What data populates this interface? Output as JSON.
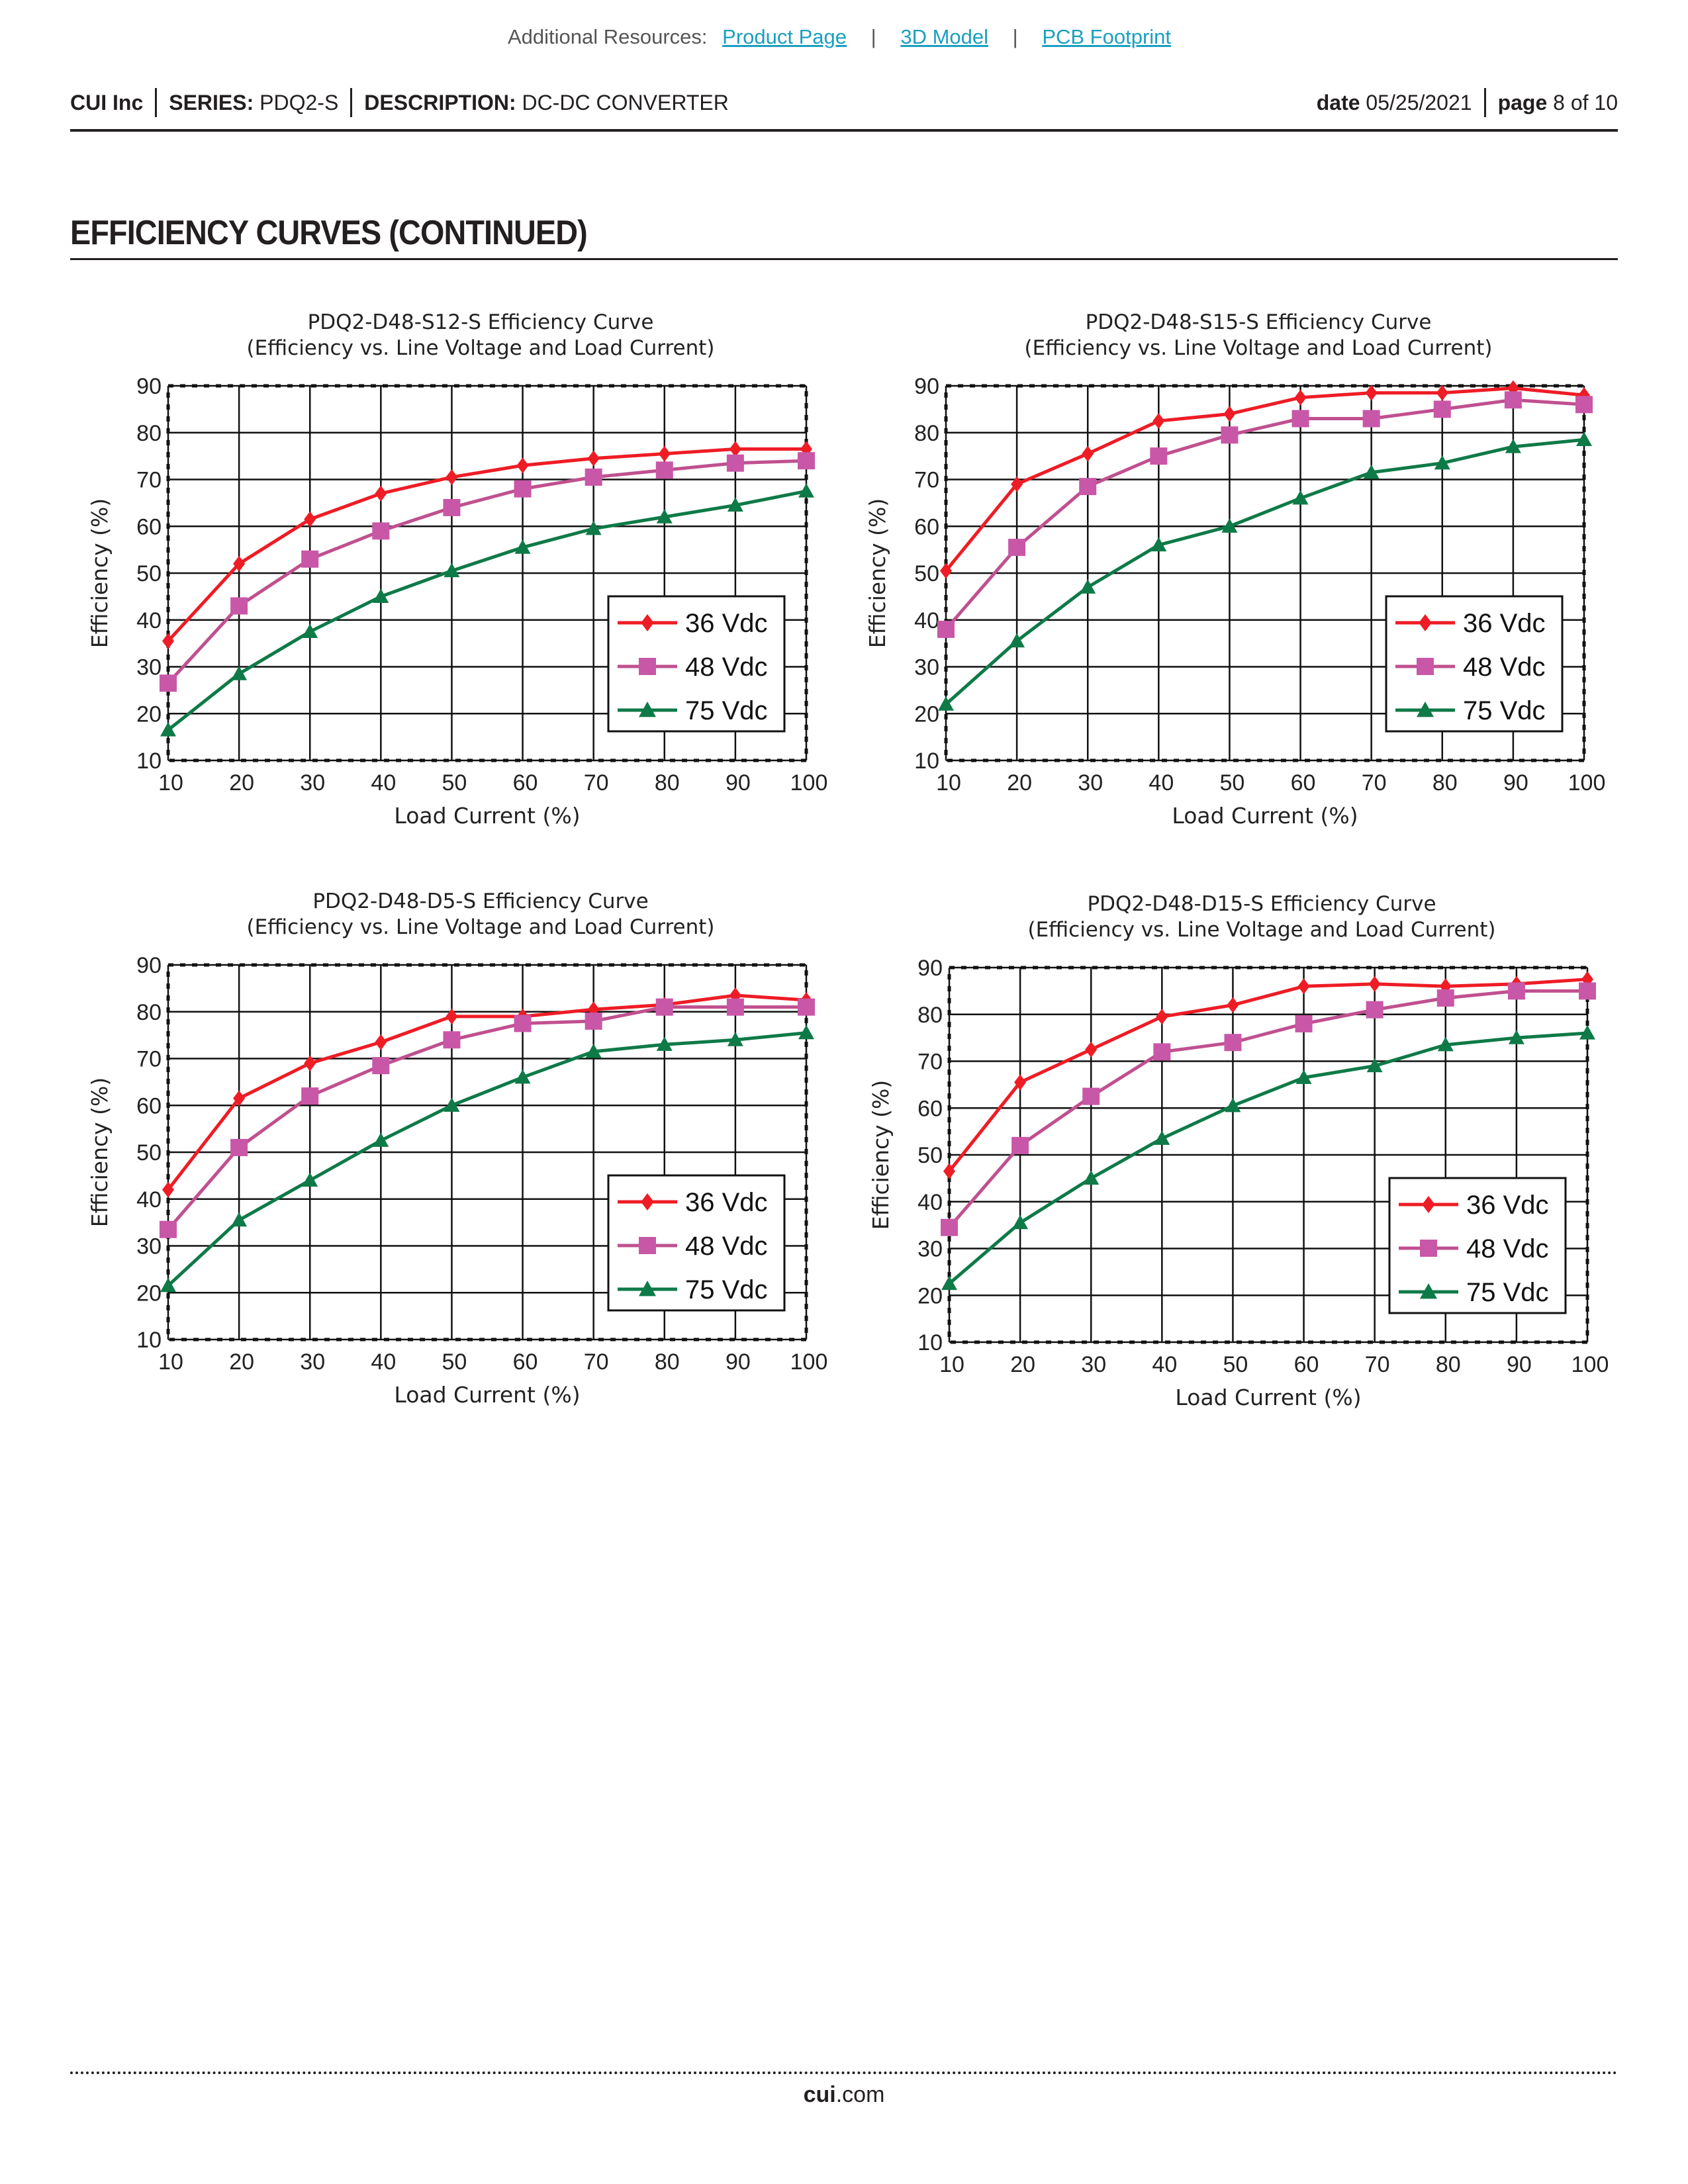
{
  "resources": {
    "label": "Additional Resources:",
    "links": [
      "Product Page",
      "3D Model",
      "PCB Footprint"
    ],
    "separator": "|"
  },
  "header": {
    "company": "CUI Inc",
    "series_label": "SERIES:",
    "series": "PDQ2-S",
    "description_label": "DESCRIPTION:",
    "description": "DC-DC CONVERTER",
    "date_label": "date",
    "date": "05/25/2021",
    "page_label": "page",
    "page": "8 of 10"
  },
  "section_title": "EFFICIENCY CURVES (CONTINUED)",
  "footer": {
    "domain_bold": "cui",
    "domain_rest": ".com"
  },
  "colors": {
    "36": "#ee1c25",
    "48": "#c0508f",
    "75": "#0e7a47",
    "marker48": "#c957a8"
  },
  "chart_data": [
    {
      "type": "line",
      "title": "PDQ2-D48-S12-S Efficiency Curve",
      "subtitle": "(Efficiency vs. Line Voltage and Load Current)",
      "xlabel": "Load Current (%)",
      "ylabel": "Efficiency (%)",
      "xlim": [
        10,
        100
      ],
      "ylim": [
        10,
        90
      ],
      "x": [
        10,
        20,
        30,
        40,
        50,
        60,
        70,
        80,
        90,
        100
      ],
      "yticks": [
        "10",
        "20",
        "30",
        "40",
        "50",
        "60",
        "70",
        "80",
        "90"
      ],
      "xticks": [
        "10",
        "20",
        "30",
        "40",
        "50",
        "60",
        "70",
        "80",
        "90",
        "100"
      ],
      "grid": true,
      "legend": "bottom-right",
      "series": [
        {
          "name": "36 Vdc",
          "marker": "diamond",
          "values": [
            35.5,
            52,
            61.5,
            67,
            70.5,
            73,
            74.5,
            75.5,
            76.5,
            76.5
          ]
        },
        {
          "name": "48 Vdc",
          "marker": "square",
          "values": [
            26.5,
            43,
            53,
            59,
            64,
            68,
            70.5,
            72,
            73.5,
            74
          ]
        },
        {
          "name": "75 Vdc",
          "marker": "triangle",
          "values": [
            16.5,
            28.5,
            37.5,
            45,
            50.5,
            55.5,
            59.5,
            62,
            64.5,
            67.5
          ]
        }
      ]
    },
    {
      "type": "line",
      "title": "PDQ2-D48-S15-S Efficiency Curve",
      "subtitle": "(Efficiency vs. Line Voltage and Load Current)",
      "xlabel": "Load Current (%)",
      "ylabel": "Efficiency (%)",
      "xlim": [
        10,
        100
      ],
      "ylim": [
        10,
        90
      ],
      "x": [
        10,
        20,
        30,
        40,
        50,
        60,
        70,
        80,
        90,
        100
      ],
      "yticks": [
        "10",
        "20",
        "30",
        "40",
        "50",
        "60",
        "70",
        "80",
        "90"
      ],
      "xticks": [
        "10",
        "20",
        "30",
        "40",
        "50",
        "60",
        "70",
        "80",
        "90",
        "100"
      ],
      "grid": true,
      "legend": "bottom-right",
      "series": [
        {
          "name": "36 Vdc",
          "marker": "diamond",
          "values": [
            50.5,
            69,
            75.5,
            82.5,
            84,
            87.5,
            88.5,
            88.5,
            89.5,
            88
          ]
        },
        {
          "name": "48 Vdc",
          "marker": "square",
          "values": [
            38,
            55.5,
            68.5,
            75,
            79.5,
            83,
            83,
            85,
            87,
            86
          ]
        },
        {
          "name": "75 Vdc",
          "marker": "triangle",
          "values": [
            22,
            35.5,
            47,
            56,
            60,
            66,
            71.5,
            73.5,
            77,
            78.5
          ]
        }
      ]
    },
    {
      "type": "line",
      "title": "PDQ2-D48-D5-S Efficiency Curve",
      "subtitle": "(Efficiency vs. Line Voltage and Load Current)",
      "xlabel": "Load Current (%)",
      "ylabel": "Efficiency (%)",
      "xlim": [
        10,
        100
      ],
      "ylim": [
        10,
        90
      ],
      "x": [
        10,
        20,
        30,
        40,
        50,
        60,
        70,
        80,
        90,
        100
      ],
      "yticks": [
        "10",
        "20",
        "30",
        "40",
        "50",
        "60",
        "70",
        "80",
        "90"
      ],
      "xticks": [
        "10",
        "20",
        "30",
        "40",
        "50",
        "60",
        "70",
        "80",
        "90",
        "100"
      ],
      "grid": true,
      "legend": "bottom-right",
      "series": [
        {
          "name": "36  Vdc",
          "marker": "diamond",
          "values": [
            42,
            61.5,
            69,
            73.5,
            79,
            79,
            80.5,
            81.5,
            83.5,
            82.5
          ]
        },
        {
          "name": "48  Vdc",
          "marker": "square",
          "values": [
            33.5,
            51,
            62,
            68.5,
            74,
            77.5,
            78,
            81,
            81,
            81
          ]
        },
        {
          "name": "75  Vdc",
          "marker": "triangle",
          "values": [
            21.5,
            35.5,
            44,
            52.5,
            60,
            66,
            71.5,
            73,
            74,
            75.5
          ]
        }
      ]
    },
    {
      "type": "line",
      "title": "PDQ2-D48-D15-S Efficiency Curve",
      "subtitle": "(Efficiency vs. Line Voltage and Load Current)",
      "xlabel": "Load Current (%)",
      "ylabel": "Efficiency (%)",
      "xlim": [
        10,
        100
      ],
      "ylim": [
        10,
        90
      ],
      "x": [
        10,
        20,
        30,
        40,
        50,
        60,
        70,
        80,
        90,
        100
      ],
      "yticks": [
        "10",
        "20",
        "30",
        "40",
        "50",
        "60",
        "70",
        "80",
        "90"
      ],
      "xticks": [
        "10",
        "20",
        "30",
        "40",
        "50",
        "60",
        "70",
        "80",
        "90",
        "100"
      ],
      "grid": true,
      "legend": "bottom-right",
      "series": [
        {
          "name": "36 Vdc",
          "marker": "diamond",
          "values": [
            46.5,
            65.5,
            72.5,
            79.5,
            82,
            86,
            86.5,
            86,
            86.5,
            87.5
          ]
        },
        {
          "name": "48 Vdc",
          "marker": "square",
          "values": [
            34.5,
            52,
            62.5,
            72,
            74,
            78,
            81,
            83.5,
            85,
            85
          ]
        },
        {
          "name": "75 Vdc",
          "marker": "triangle",
          "values": [
            22.5,
            35.5,
            45,
            53.5,
            60.5,
            66.5,
            69,
            73.5,
            75,
            76
          ]
        }
      ]
    }
  ]
}
